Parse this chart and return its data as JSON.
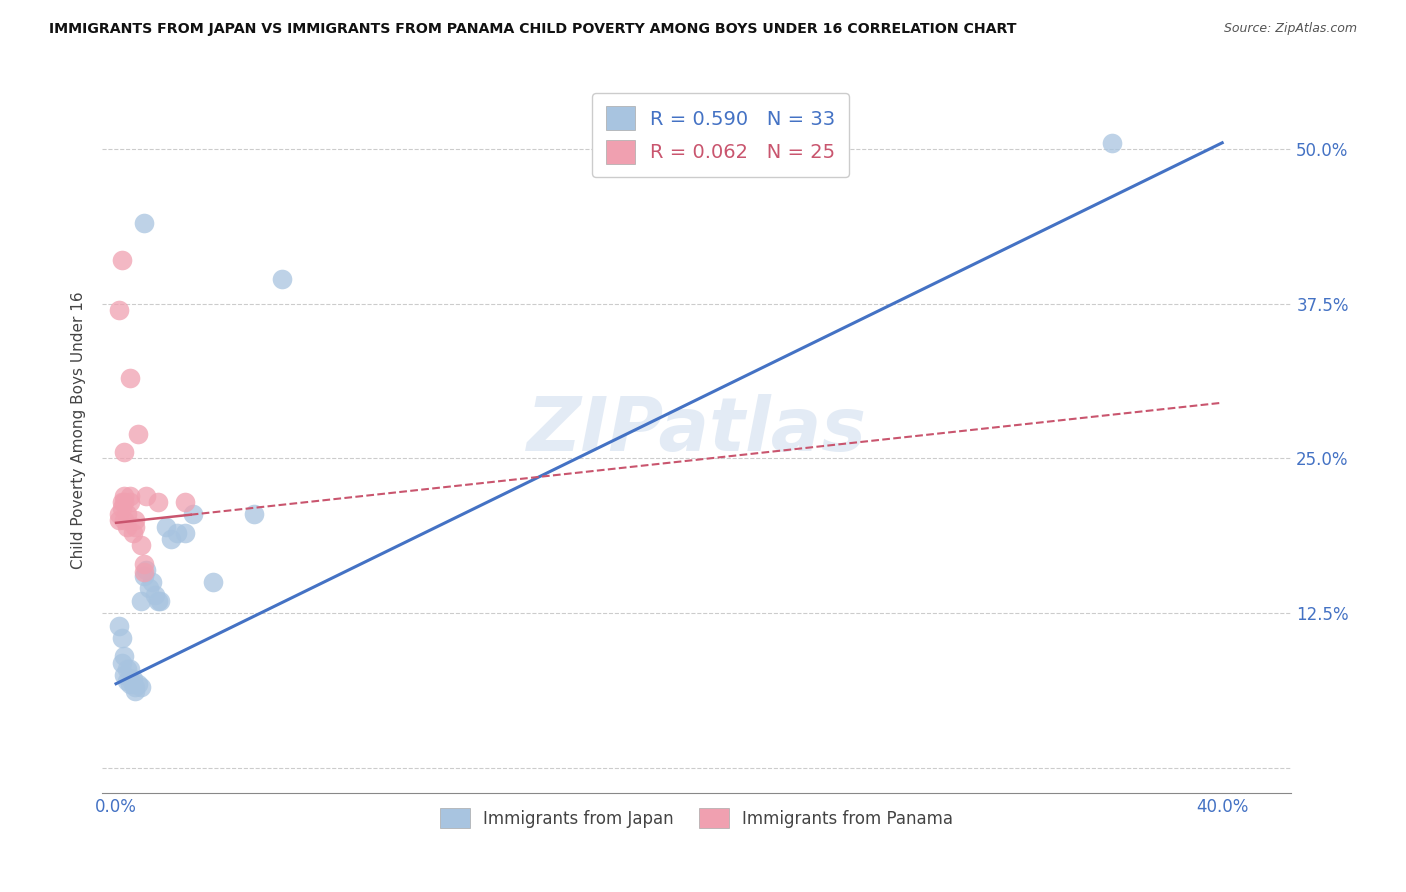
{
  "title": "IMMIGRANTS FROM JAPAN VS IMMIGRANTS FROM PANAMA CHILD POVERTY AMONG BOYS UNDER 16 CORRELATION CHART",
  "source": "Source: ZipAtlas.com",
  "ylabel": "Child Poverty Among Boys Under 16",
  "x_ticks": [
    0.0,
    0.08,
    0.16,
    0.24,
    0.32,
    0.4
  ],
  "x_tick_labels": [
    "0.0%",
    "",
    "",
    "",
    "",
    "40.0%"
  ],
  "y_ticks": [
    0.0,
    0.125,
    0.25,
    0.375,
    0.5
  ],
  "y_tick_labels": [
    "",
    "12.5%",
    "25.0%",
    "37.5%",
    "50.0%"
  ],
  "xlim": [
    -0.005,
    0.425
  ],
  "ylim": [
    -0.02,
    0.565
  ],
  "japan_color": "#a8c4e0",
  "panama_color": "#f0a0b0",
  "japan_line_color": "#4472c4",
  "panama_line_color": "#c9556e",
  "japan_R": 0.59,
  "japan_N": 33,
  "panama_R": 0.062,
  "panama_N": 25,
  "watermark": "ZIPatlas",
  "japan_x": [
    0.001,
    0.002,
    0.002,
    0.003,
    0.003,
    0.004,
    0.004,
    0.005,
    0.005,
    0.006,
    0.006,
    0.007,
    0.007,
    0.008,
    0.009,
    0.009,
    0.01,
    0.011,
    0.012,
    0.013,
    0.014,
    0.015,
    0.016,
    0.018,
    0.02,
    0.022,
    0.025,
    0.028,
    0.035,
    0.05,
    0.06,
    0.36,
    0.01
  ],
  "japan_y": [
    0.115,
    0.105,
    0.085,
    0.09,
    0.075,
    0.08,
    0.07,
    0.08,
    0.068,
    0.068,
    0.072,
    0.065,
    0.062,
    0.068,
    0.065,
    0.135,
    0.155,
    0.16,
    0.145,
    0.15,
    0.14,
    0.135,
    0.135,
    0.195,
    0.185,
    0.19,
    0.19,
    0.205,
    0.15,
    0.205,
    0.395,
    0.505,
    0.44
  ],
  "panama_x": [
    0.001,
    0.001,
    0.002,
    0.002,
    0.003,
    0.003,
    0.003,
    0.004,
    0.004,
    0.005,
    0.005,
    0.006,
    0.007,
    0.007,
    0.008,
    0.009,
    0.01,
    0.01,
    0.011,
    0.015,
    0.025,
    0.005,
    0.002,
    0.001,
    0.003
  ],
  "panama_y": [
    0.205,
    0.2,
    0.215,
    0.21,
    0.215,
    0.22,
    0.2,
    0.205,
    0.195,
    0.215,
    0.22,
    0.19,
    0.195,
    0.2,
    0.27,
    0.18,
    0.165,
    0.158,
    0.22,
    0.215,
    0.215,
    0.315,
    0.41,
    0.37,
    0.255
  ],
  "japan_line_x0": 0.0,
  "japan_line_y0": 0.068,
  "japan_line_x1": 0.4,
  "japan_line_y1": 0.505,
  "panama_line_x0": 0.0,
  "panama_line_y0": 0.198,
  "panama_line_x1": 0.4,
  "panama_line_y1": 0.295
}
